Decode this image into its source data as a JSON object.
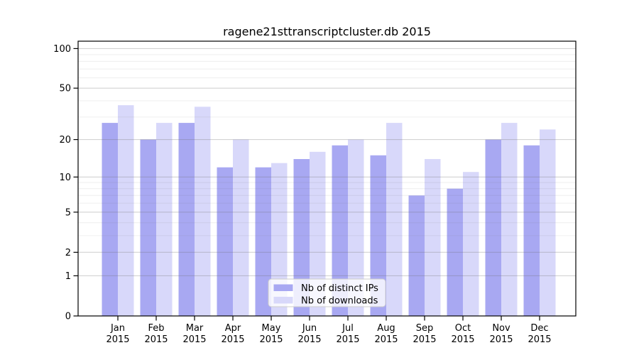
{
  "chart_data": {
    "type": "bar",
    "title": "ragene21sttranscriptcluster.db 2015",
    "categories": [
      "Jan",
      "Feb",
      "Mar",
      "Apr",
      "May",
      "Jun",
      "Jul",
      "Aug",
      "Sep",
      "Oct",
      "Nov",
      "Dec"
    ],
    "year_label": "2015",
    "series": [
      {
        "name": "Nb of distinct IPs",
        "color": "#a8a8f2",
        "values": [
          27,
          20,
          27,
          12,
          12,
          14,
          18,
          15,
          7,
          8,
          20,
          18
        ]
      },
      {
        "name": "Nb of downloads",
        "color": "#d8d8fa",
        "values": [
          37,
          27,
          36,
          20,
          13,
          16,
          20,
          27,
          14,
          11,
          27,
          24
        ]
      }
    ],
    "yscale": "log1p",
    "yticks": [
      0,
      1,
      2,
      5,
      10,
      20,
      50,
      100
    ],
    "yticks_minor": [
      3,
      4,
      6,
      7,
      8,
      9,
      30,
      40,
      60,
      70,
      80,
      90
    ],
    "ylim": [
      0,
      114
    ],
    "grid": "horizontal",
    "legend_position": "inside-bottom-center",
    "colors": {
      "grid_major": "rgba(110,110,110,0.30)",
      "grid_minor": "rgba(110,110,110,0.10)",
      "frame": "#000000",
      "legend_border": "#cccccc",
      "legend_bg": "rgba(255,255,255,0.8)"
    }
  }
}
